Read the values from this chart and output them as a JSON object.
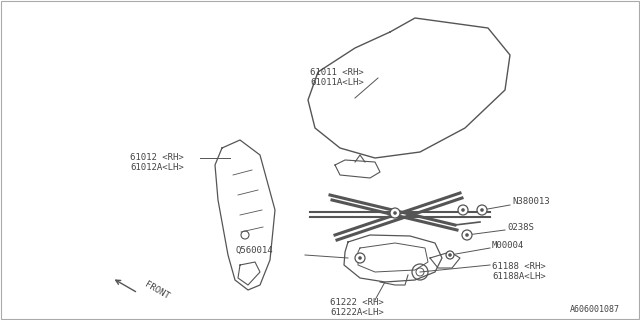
{
  "bg_color": "#ffffff",
  "border_color": "#aaaaaa",
  "line_color": "#555555",
  "text_color": "#444444",
  "part_number_ref": "A606001087",
  "fig_w": 6.4,
  "fig_h": 3.2,
  "dpi": 100,
  "labels": {
    "61011": "61011 <RH>\n61011A<LH>",
    "61012": "61012 <RH>\n61012A<LH>",
    "N380013": "N380013",
    "0238S": "0238S",
    "M00004": "M00004",
    "Q560014": "Q560014",
    "61188": "61188 <RH>\n61188A<LH>",
    "61222": "61222 <RH>\n61222A<LH>"
  },
  "front_label": "FRONT"
}
